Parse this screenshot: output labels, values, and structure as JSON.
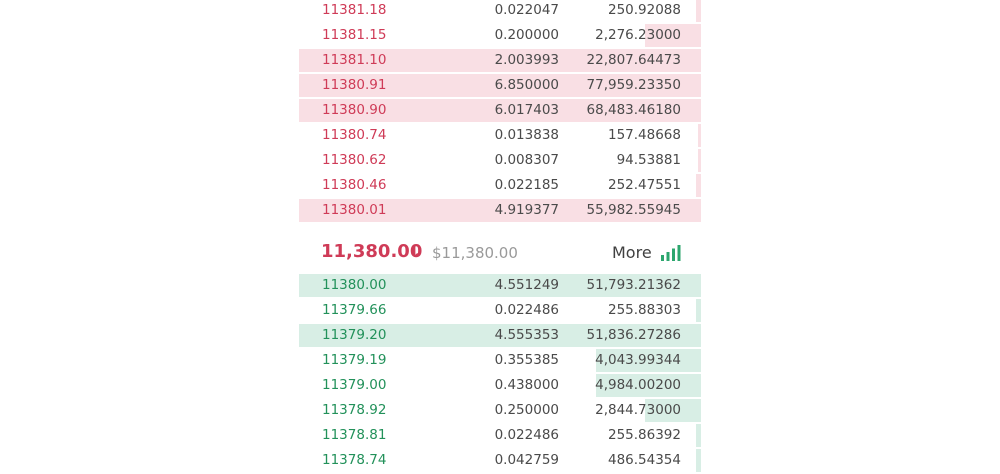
{
  "asks": [
    {
      "price": "11381.18",
      "amount": "0.022047",
      "total": "250.92088",
      "depth_fraction": 0.012
    },
    {
      "price": "11381.15",
      "amount": "0.200000",
      "total": "2,276.23000",
      "depth_fraction": 0.14
    },
    {
      "price": "11381.10",
      "amount": "2.003993",
      "total": "22,807.64473",
      "depth_fraction": 1.0
    },
    {
      "price": "11380.91",
      "amount": "6.850000",
      "total": "77,959.23350",
      "depth_fraction": 1.0
    },
    {
      "price": "11380.90",
      "amount": "6.017403",
      "total": "68,483.46180",
      "depth_fraction": 1.0
    },
    {
      "price": "11380.74",
      "amount": "0.013838",
      "total": "157.48668",
      "depth_fraction": 0.007
    },
    {
      "price": "11380.62",
      "amount": "0.008307",
      "total": "94.53881",
      "depth_fraction": 0.005
    },
    {
      "price": "11380.46",
      "amount": "0.022185",
      "total": "252.47551",
      "depth_fraction": 0.012
    },
    {
      "price": "11380.01",
      "amount": "4.919377",
      "total": "55,982.55945",
      "depth_fraction": 1.0
    }
  ],
  "last_trade": {
    "price": "11,380.00",
    "direction_icon": "arrow-down-icon",
    "usd_price": "$11,380.00"
  },
  "more": {
    "label": "More",
    "icon": "signal-bars-icon"
  },
  "bids": [
    {
      "price": "11380.00",
      "amount": "4.551249",
      "total": "51,793.21362",
      "depth_fraction": 1.0
    },
    {
      "price": "11379.66",
      "amount": "0.022486",
      "total": "255.88303",
      "depth_fraction": 0.012
    },
    {
      "price": "11379.20",
      "amount": "4.555353",
      "total": "51,836.27286",
      "depth_fraction": 1.0
    },
    {
      "price": "11379.19",
      "amount": "0.355385",
      "total": "4,043.99344",
      "depth_fraction": 0.26
    },
    {
      "price": "11379.00",
      "amount": "0.438000",
      "total": "4,984.00200",
      "depth_fraction": 0.26
    },
    {
      "price": "11378.92",
      "amount": "0.250000",
      "total": "2,844.73000",
      "depth_fraction": 0.14
    },
    {
      "price": "11378.81",
      "amount": "0.022486",
      "total": "255.86392",
      "depth_fraction": 0.012
    },
    {
      "price": "11378.74",
      "amount": "0.042759",
      "total": "486.54354",
      "depth_fraction": 0.012
    }
  ],
  "colors": {
    "ask_price": "#cf3b57",
    "bid_price": "#22915a",
    "ask_depth": "#f9dfe4",
    "bid_depth": "#d8eee5",
    "more_bars": "#2ca66e"
  }
}
